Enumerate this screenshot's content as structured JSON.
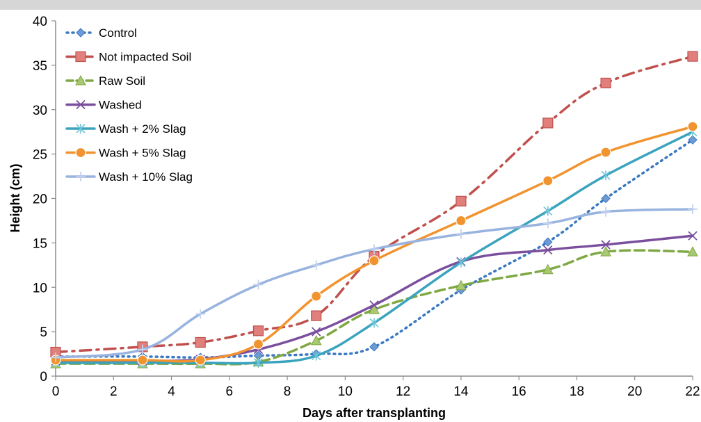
{
  "chart_data": {
    "type": "line",
    "xlabel": "Days after transplanting",
    "ylabel": "Height (cm)",
    "xlim": [
      0,
      22
    ],
    "ylim": [
      0,
      40
    ],
    "xticks": [
      "0",
      "2",
      "4",
      "6",
      "8",
      "10",
      "12",
      "14",
      "16",
      "18",
      "20",
      "22"
    ],
    "yticks": [
      "0",
      "5",
      "10",
      "15",
      "20",
      "25",
      "30",
      "35",
      "40"
    ],
    "grid": false,
    "legend_position": "top-left",
    "x": [
      0,
      3,
      5,
      7,
      9,
      11,
      14,
      17,
      19,
      22
    ],
    "series": [
      {
        "name": "Control",
        "color": "#3a78c2",
        "marker": "diamond",
        "dash": "dotted",
        "values": [
          2.2,
          2.2,
          2.1,
          2.3,
          2.5,
          3.3,
          9.7,
          15.1,
          20.0,
          26.6
        ]
      },
      {
        "name": "Not impacted Soil",
        "color": "#c0504d",
        "marker": "square",
        "dash": "dashdot",
        "values": [
          2.7,
          3.3,
          3.8,
          5.1,
          6.8,
          13.5,
          19.7,
          28.5,
          33.0,
          36.0
        ]
      },
      {
        "name": "Raw Soil",
        "color": "#7fa843",
        "marker": "triangle",
        "dash": "dashed",
        "values": [
          1.4,
          1.4,
          1.4,
          1.6,
          4.0,
          7.5,
          10.2,
          12.0,
          14.0,
          14.0
        ]
      },
      {
        "name": "Washed",
        "color": "#7b4f9e",
        "marker": "x",
        "dash": "solid",
        "values": [
          1.7,
          1.7,
          1.9,
          3.0,
          5.0,
          8.0,
          12.9,
          14.2,
          14.8,
          15.8
        ]
      },
      {
        "name": "Wash + 2% Slag",
        "color": "#3aa3bd",
        "marker": "star",
        "dash": "solid",
        "values": [
          1.5,
          1.5,
          1.5,
          1.5,
          2.3,
          6.0,
          12.8,
          18.6,
          22.6,
          27.5
        ]
      },
      {
        "name": "Wash + 5% Slag",
        "color": "#f1932e",
        "marker": "circle",
        "dash": "solid",
        "values": [
          1.8,
          1.8,
          1.8,
          3.6,
          9.0,
          13.0,
          17.5,
          22.0,
          25.2,
          28.1
        ]
      },
      {
        "name": "Wash + 10% Slag",
        "color": "#98b3df",
        "marker": "plus",
        "dash": "solid",
        "values": [
          2.1,
          3.0,
          7.0,
          10.3,
          12.5,
          14.3,
          16.0,
          17.2,
          18.5,
          18.8
        ]
      }
    ]
  }
}
